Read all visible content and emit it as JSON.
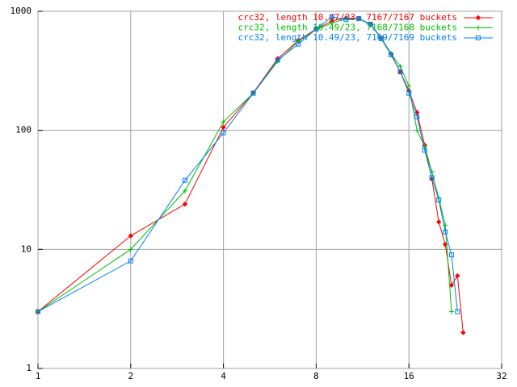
{
  "chart_data": {
    "type": "line",
    "log_x": true,
    "log_y": true,
    "grid": true,
    "legend": "top-right",
    "xlim": [
      1,
      32
    ],
    "xticks": [
      1,
      2,
      4,
      8,
      16,
      32
    ],
    "ylim": [
      1,
      1000
    ],
    "yticks": [
      1,
      10,
      100,
      1000
    ],
    "series": [
      {
        "name": "crc32, length 10.47/23, 7167/7167 buckets",
        "color": "#ff0000",
        "marker": "diamond",
        "x": [
          1,
          2,
          3,
          4,
          5,
          6,
          7,
          8,
          9,
          10,
          11,
          12,
          13,
          14,
          15,
          16,
          17,
          18,
          19,
          20,
          21,
          22,
          23,
          24
        ],
        "values": [
          3,
          13,
          24,
          106,
          207,
          400,
          570,
          710,
          830,
          880,
          870,
          780,
          600,
          440,
          310,
          215,
          141,
          75,
          39,
          17,
          11,
          5,
          6,
          2
        ]
      },
      {
        "name": "crc32, length 10.49/23, 7168/7168 buckets",
        "color": "#00c000",
        "marker": "plus",
        "x": [
          1,
          2,
          3,
          4,
          5,
          6,
          7,
          8,
          9,
          10,
          11,
          12,
          13,
          14,
          15,
          16,
          17,
          18,
          19,
          20,
          21,
          22
        ],
        "values": [
          3,
          10,
          31,
          118,
          205,
          380,
          560,
          700,
          800,
          860,
          870,
          770,
          600,
          440,
          345,
          235,
          100,
          73,
          45,
          27,
          16,
          3
        ]
      },
      {
        "name": "crc32, length 10.49/23, 7169/7169 buckets",
        "color": "#0080ff",
        "marker": "square",
        "x": [
          1,
          2,
          3,
          4,
          5,
          6,
          7,
          8,
          9,
          10,
          11,
          12,
          13,
          14,
          15,
          16,
          17,
          18,
          19,
          20,
          21,
          22,
          23
        ],
        "values": [
          3,
          8,
          38,
          95,
          205,
          390,
          530,
          710,
          900,
          850,
          870,
          780,
          590,
          430,
          310,
          205,
          130,
          68,
          40,
          26,
          14,
          9,
          3
        ]
      }
    ]
  }
}
